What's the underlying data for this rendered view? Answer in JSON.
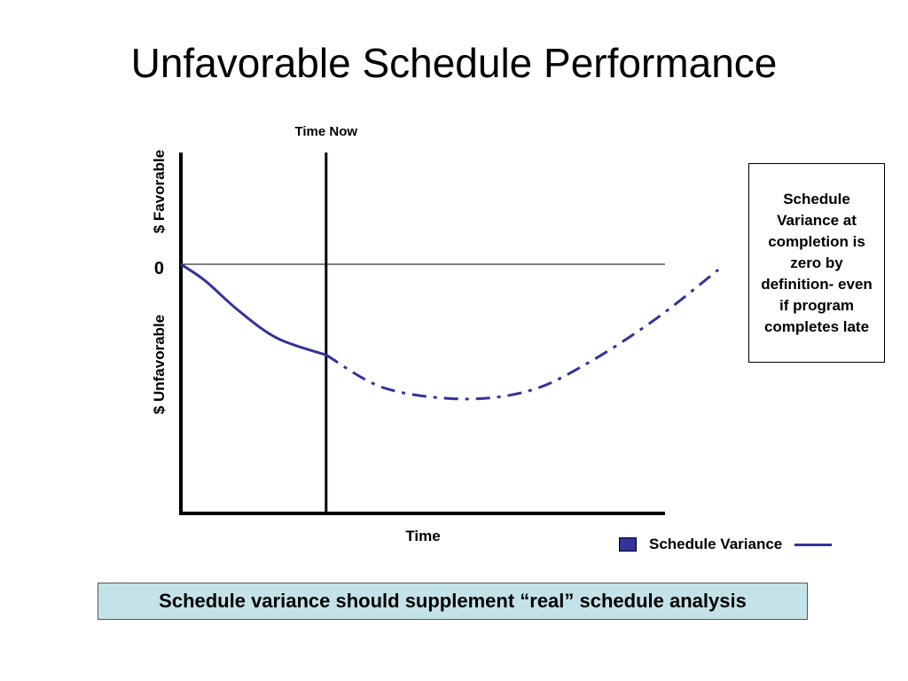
{
  "page": {
    "title": "Unfavorable Schedule Performance"
  },
  "note": {
    "text": "Schedule Variance at completion is zero by definition- even if program completes late"
  },
  "banner": {
    "text": "Schedule variance should supplement “real” schedule analysis"
  },
  "colors": {
    "series": "#333399",
    "banner_bg": "#c4e3e8"
  },
  "chart_data": {
    "type": "line",
    "title": "",
    "xlabel": "Time",
    "ylabel_positive": "$ Favorable",
    "ylabel_negative": "$ Unfavorable",
    "zero_label": "0",
    "time_now_label": "Time Now",
    "time_now_x": 0.3,
    "xlim": [
      0,
      1.12
    ],
    "ylim": [
      -1,
      0.45
    ],
    "grid": false,
    "legend": {
      "placement": "bottom-right",
      "entries": [
        "Schedule Variance"
      ]
    },
    "series": [
      {
        "name": "Schedule Variance",
        "segment": "actual",
        "style": "solid",
        "x": [
          0,
          0.05,
          0.12,
          0.2,
          0.3
        ],
        "y": [
          0,
          -0.06,
          -0.17,
          -0.27,
          -0.33
        ]
      },
      {
        "name": "Schedule Variance",
        "segment": "projected",
        "style": "dashdot",
        "x": [
          0.3,
          0.42,
          0.58,
          0.72,
          0.84,
          0.98,
          1.11
        ],
        "y": [
          -0.33,
          -0.45,
          -0.49,
          -0.46,
          -0.36,
          -0.2,
          -0.02
        ]
      }
    ]
  }
}
